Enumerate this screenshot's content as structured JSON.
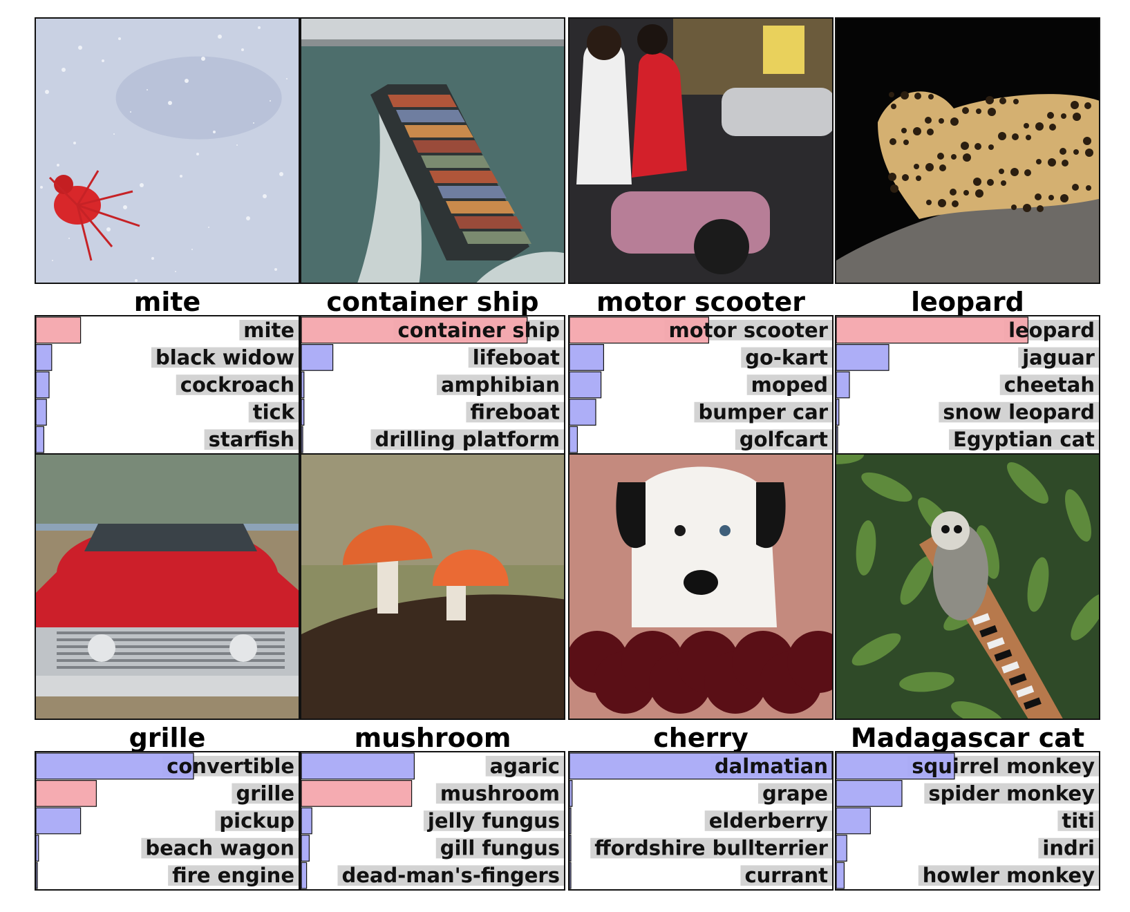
{
  "colors": {
    "true_label_bar": "#f4a6ad",
    "other_bar": "#a9aaf7",
    "label_bg": "#d3d3d3",
    "frame": "#111111"
  },
  "chart_data": [
    {
      "type": "bar",
      "orientation": "horizontal",
      "xlim": [
        0,
        1
      ],
      "image_subject": "red mite on a pale surface",
      "image_icon": "mite-photo",
      "title": "mite",
      "categories": [
        "mite",
        "black widow",
        "cockroach",
        "tick",
        "starfish"
      ],
      "values": [
        0.17,
        0.06,
        0.05,
        0.04,
        0.03
      ],
      "highlight": [
        "mite"
      ]
    },
    {
      "type": "bar",
      "orientation": "horizontal",
      "xlim": [
        0,
        1
      ],
      "image_subject": "container ship at sea",
      "image_icon": "ship-photo",
      "title": "container ship",
      "categories": [
        "container ship",
        "lifeboat",
        "amphibian",
        "fireboat",
        "drilling platform"
      ],
      "values": [
        0.86,
        0.12,
        0.01,
        0.01,
        0.005
      ],
      "highlight": [
        "container ship"
      ]
    },
    {
      "type": "bar",
      "orientation": "horizontal",
      "xlim": [
        0,
        1
      ],
      "image_subject": "two people on a motor scooter at night",
      "image_icon": "scooter-photo",
      "title": "motor scooter",
      "categories": [
        "motor scooter",
        "go-kart",
        "moped",
        "bumper car",
        "golfcart"
      ],
      "values": [
        0.53,
        0.13,
        0.12,
        0.1,
        0.03
      ],
      "highlight": [
        "motor scooter"
      ]
    },
    {
      "type": "bar",
      "orientation": "horizontal",
      "xlim": [
        0,
        1
      ],
      "image_subject": "leopard resting on a tree branch",
      "image_icon": "leopard-photo",
      "title": "leopard",
      "categories": [
        "leopard",
        "jaguar",
        "cheetah",
        "snow leopard",
        "Egyptian cat"
      ],
      "values": [
        0.73,
        0.2,
        0.05,
        0.01,
        0.005
      ],
      "highlight": [
        "leopard"
      ]
    },
    {
      "type": "bar",
      "orientation": "horizontal",
      "xlim": [
        0,
        1
      ],
      "image_subject": "front of a red vintage car",
      "image_icon": "car-photo",
      "title": "grille",
      "categories": [
        "convertible",
        "grille",
        "pickup",
        "beach wagon",
        "fire engine"
      ],
      "values": [
        0.6,
        0.23,
        0.17,
        0.01,
        0.005
      ],
      "highlight": [
        "grille"
      ]
    },
    {
      "type": "bar",
      "orientation": "horizontal",
      "xlim": [
        0,
        1
      ],
      "image_subject": "two orange mushrooms on a log",
      "image_icon": "mushroom-photo",
      "title": "mushroom",
      "categories": [
        "agaric",
        "mushroom",
        "jelly fungus",
        "gill fungus",
        "dead-man's-fingers"
      ],
      "values": [
        0.43,
        0.42,
        0.04,
        0.03,
        0.02
      ],
      "highlight": [
        "mushroom"
      ]
    },
    {
      "type": "bar",
      "orientation": "horizontal",
      "xlim": [
        0,
        1
      ],
      "image_subject": "dalmatian behind a bowl of cherries",
      "image_icon": "dalmatian-photo",
      "title": "cherry",
      "categories": [
        "dalmatian",
        "grape",
        "elderberry",
        "ffordshire bullterrier",
        "currant"
      ],
      "values": [
        1.0,
        0.01,
        0.005,
        0.003,
        0.002
      ],
      "highlight": []
    },
    {
      "type": "bar",
      "orientation": "horizontal",
      "xlim": [
        0,
        1
      ],
      "image_subject": "lemur climbing a tree",
      "image_icon": "lemur-photo",
      "title": "Madagascar cat",
      "categories": [
        "squirrel monkey",
        "spider monkey",
        "titi",
        "indri",
        "howler monkey"
      ],
      "values": [
        0.45,
        0.25,
        0.13,
        0.04,
        0.03
      ],
      "highlight": []
    }
  ]
}
